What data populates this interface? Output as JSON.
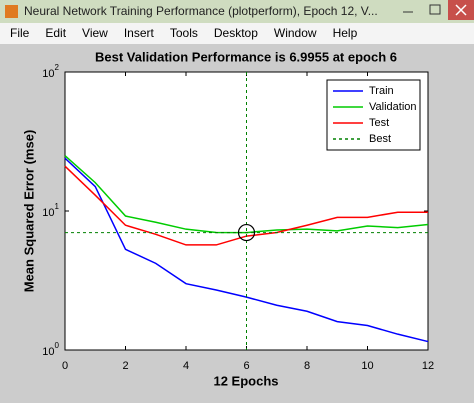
{
  "window": {
    "title": "Neural Network Training Performance (plotperform), Epoch 12, V...",
    "menu": [
      "File",
      "Edit",
      "View",
      "Insert",
      "Tools",
      "Desktop",
      "Window",
      "Help"
    ]
  },
  "chart_data": {
    "type": "line",
    "title": "Best Validation Performance is 6.9955 at epoch 6",
    "x_label": "12 Epochs",
    "y_label": "Mean Squared Error  (mse)",
    "x": [
      0,
      1,
      2,
      3,
      4,
      5,
      6,
      7,
      8,
      9,
      10,
      11,
      12
    ],
    "series": [
      {
        "name": "Train",
        "color": "#0000ff",
        "values": [
          24,
          15,
          5.3,
          4.2,
          3.0,
          2.7,
          2.4,
          2.1,
          1.9,
          1.6,
          1.5,
          1.3,
          1.15
        ]
      },
      {
        "name": "Validation",
        "color": "#00cc00",
        "values": [
          25,
          16,
          9.2,
          8.3,
          7.4,
          7.0,
          6.9955,
          7.3,
          7.4,
          7.2,
          7.8,
          7.6,
          8.0
        ]
      },
      {
        "name": "Test",
        "color": "#ff0000",
        "values": [
          21,
          13,
          7.9,
          6.8,
          5.7,
          5.7,
          6.6,
          7.0,
          7.9,
          9.0,
          9.0,
          9.8,
          9.8
        ]
      }
    ],
    "best": {
      "name": "Best",
      "color": "#008000",
      "epoch": 6,
      "value": 6.9955
    },
    "xlim": [
      0,
      12
    ],
    "xticks": [
      0,
      2,
      4,
      6,
      8,
      10,
      12
    ],
    "ylim": [
      1,
      100
    ],
    "yticks": [
      {
        "value": 1,
        "label": "10",
        "exponent": "0"
      },
      {
        "value": 10,
        "label": "10",
        "exponent": "1"
      },
      {
        "value": 100,
        "label": "10",
        "exponent": "2"
      }
    ],
    "yscale": "log",
    "grid": false,
    "legend": "upper right"
  }
}
